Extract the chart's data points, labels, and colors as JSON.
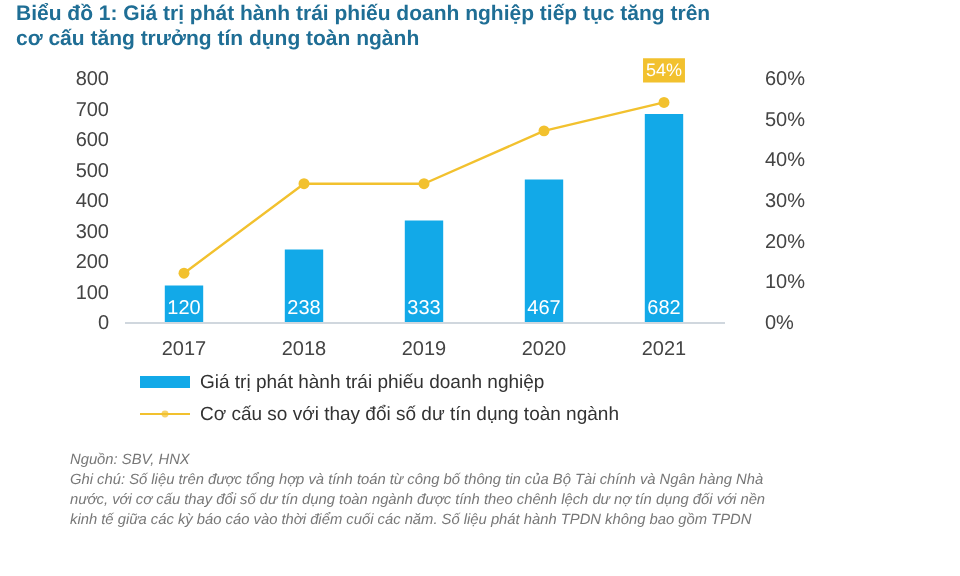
{
  "chart_data": {
    "type": "bar",
    "title": "Biểu đồ 1: Giá trị phát hành trái phiếu doanh nghiệp tiếp tục tăng trên cơ cấu tăng trưởng tín dụng toàn ngành",
    "categories": [
      "2017",
      "2018",
      "2019",
      "2020",
      "2021"
    ],
    "series": [
      {
        "name": "Giá trị phát hành trái phiếu doanh nghiệp",
        "color": "#12a9e8",
        "values": [
          120,
          238,
          333,
          467,
          682
        ]
      },
      {
        "name": "Cơ cấu so với thay đổi số dư tín dụng toàn ngành",
        "type": "line",
        "axis": "y2",
        "color": "#f2c12e",
        "values": [
          12,
          34,
          34,
          47,
          54
        ],
        "value_labels": [
          null,
          null,
          null,
          null,
          "54%"
        ]
      }
    ],
    "data_labels": true,
    "ylim": [
      0,
      800
    ],
    "yticks": [
      0,
      100,
      200,
      300,
      400,
      500,
      600,
      700,
      800
    ],
    "y2lim": [
      0,
      60
    ],
    "y2ticks": [
      {
        "value": 0,
        "label": "0%"
      },
      {
        "value": 10,
        "label": "10%"
      },
      {
        "value": 20,
        "label": "20%"
      },
      {
        "value": 30,
        "label": "30%"
      },
      {
        "value": 40,
        "label": "40%"
      },
      {
        "value": 50,
        "label": "50%"
      },
      {
        "value": 60,
        "label": "60%"
      }
    ],
    "marker": "circle",
    "grid": false,
    "legend": "bottom left",
    "annotations": [
      "Nguồn: SBV, HNX",
      "Ghi chú: Số liệu trên được tổng hợp và tính toán từ công bố thông tin của Bộ Tài chính và Ngân hàng Nhà",
      "nước, với cơ cấu thay đổi số dư tín dụng toàn ngành được tính theo chênh lệch dư nợ tín dụng đối với nền",
      "kinh tế giữa các kỳ báo cáo vào thời điểm cuối các năm. Số liệu phát hành TPDN không bao gồm TPDN"
    ]
  }
}
